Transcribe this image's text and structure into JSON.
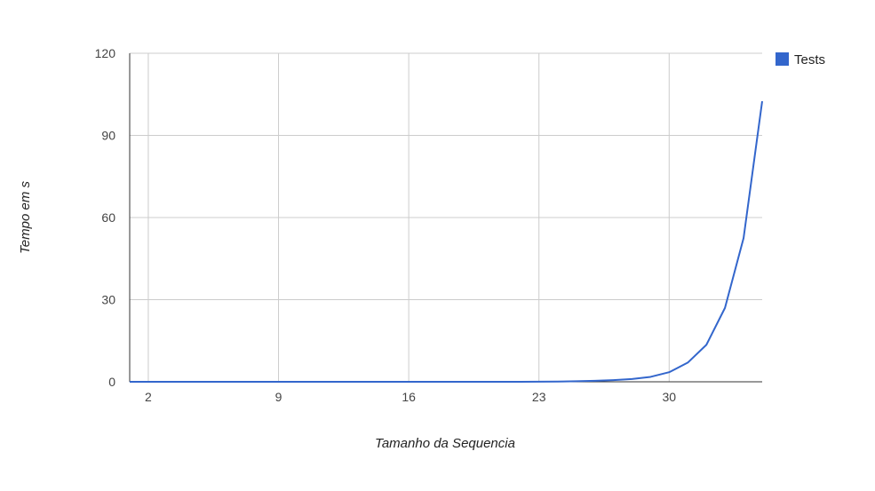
{
  "chart_data": {
    "type": "line",
    "title": "",
    "xlabel": "Tamanho da Sequencia",
    "ylabel": "Tempo em s",
    "xlim": [
      1,
      35
    ],
    "ylim": [
      0,
      120
    ],
    "x_ticks": [
      2,
      9,
      16,
      23,
      30
    ],
    "y_ticks": [
      0,
      30,
      60,
      90,
      120
    ],
    "grid": true,
    "legend_position": "top-right",
    "series": [
      {
        "name": "Tests",
        "color": "#3366cc",
        "x": [
          1,
          2,
          3,
          4,
          5,
          6,
          7,
          8,
          9,
          10,
          11,
          12,
          13,
          14,
          15,
          16,
          17,
          18,
          19,
          20,
          21,
          22,
          23,
          24,
          25,
          26,
          27,
          28,
          29,
          30,
          31,
          32,
          33,
          34,
          35
        ],
        "values": [
          0,
          0,
          0,
          0,
          0,
          0,
          0,
          0,
          0,
          0,
          0,
          0,
          0,
          0,
          0,
          0,
          0,
          0,
          0,
          0,
          0,
          0,
          0.05,
          0.1,
          0.2,
          0.35,
          0.6,
          1.0,
          1.8,
          3.5,
          7,
          13.5,
          27,
          52.5,
          102.5
        ]
      }
    ]
  }
}
